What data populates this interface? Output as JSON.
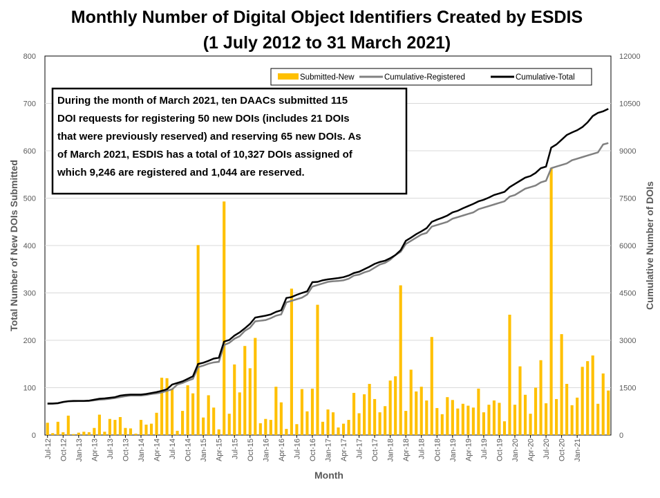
{
  "chart_data": {
    "type": "bar",
    "title": "Monthly Number of Digital Object Identifiers Created by ESDIS",
    "subtitle": "(1 July 2012 to 31 March 2021)",
    "xlabel": "Month",
    "ylabel": "Total Number of New DOIs Submitted",
    "y2label": "Cumulative Number of DOIs",
    "ylim": [
      0,
      800
    ],
    "y2lim": [
      0,
      12000
    ],
    "yticks": [
      "0",
      "100",
      "200",
      "300",
      "400",
      "500",
      "600",
      "700",
      "800"
    ],
    "y2ticks": [
      "0",
      "1500",
      "3000",
      "4500",
      "6000",
      "7500",
      "9000",
      "10500",
      "12000"
    ],
    "xtick_labels": [
      "Jul-12",
      "Oct-12",
      "Jan-13",
      "Apr-13",
      "Jul-13",
      "Oct-13",
      "Jan-14",
      "Apr-14",
      "Jul-14",
      "Oct-14",
      "Jan-15",
      "Apr-15",
      "Jul-15",
      "Oct-15",
      "Jan-16",
      "Apr-16",
      "Jul-16",
      "Oct-16",
      "Jan-17",
      "Apr-17",
      "Jul-17",
      "Oct-17",
      "Jan-18",
      "Apr-18",
      "Jul-18",
      "Oct-18",
      "Jan-19",
      "Apr-19",
      "Jul-19",
      "Oct-19",
      "Jan-20",
      "Apr-20",
      "Jul-20",
      "Oct-20",
      "Jan-21"
    ],
    "grid": "horizontal",
    "legend_position": "top-right",
    "series": [
      {
        "name": "Submitted-New",
        "kind": "bar",
        "axis": "left",
        "color": "#FFC000",
        "values": [
          26,
          4,
          28,
          6,
          41,
          2,
          5,
          7,
          6,
          15,
          43,
          7,
          34,
          32,
          38,
          15,
          14,
          3,
          32,
          22,
          24,
          47,
          121,
          120,
          98,
          9,
          51,
          105,
          88,
          401,
          37,
          84,
          58,
          12,
          493,
          45,
          149,
          90,
          188,
          141,
          205,
          25,
          34,
          32,
          102,
          69,
          13,
          309,
          23,
          97,
          50,
          98,
          275,
          28,
          54,
          48,
          16,
          24,
          32,
          89,
          46,
          86,
          108,
          76,
          48,
          61,
          115,
          124,
          316,
          51,
          138,
          92,
          102,
          73,
          207,
          57,
          44,
          80,
          74,
          56,
          66,
          62,
          58,
          98,
          48,
          64,
          73,
          68,
          29,
          254,
          64,
          145,
          85,
          45,
          100,
          158,
          67,
          564,
          76,
          213,
          108,
          63,
          79,
          144,
          156,
          168,
          66,
          130,
          94
        ]
      },
      {
        "name": "Cumulative-Registered",
        "kind": "line",
        "axis": "right",
        "color": "#808080",
        "values": [
          985,
          990,
          1005,
          1040,
          1070,
          1070,
          1075,
          1075,
          1080,
          1100,
          1120,
          1130,
          1150,
          1170,
          1200,
          1230,
          1250,
          1250,
          1250,
          1270,
          1300,
          1320,
          1350,
          1400,
          1450,
          1600,
          1650,
          1720,
          1780,
          2150,
          2200,
          2260,
          2300,
          2320,
          2850,
          2920,
          3050,
          3130,
          3300,
          3400,
          3600,
          3620,
          3640,
          3700,
          3780,
          3820,
          4200,
          4250,
          4300,
          4350,
          4450,
          4700,
          4750,
          4800,
          4850,
          4870,
          4880,
          4900,
          4950,
          5050,
          5080,
          5150,
          5200,
          5300,
          5400,
          5450,
          5550,
          5700,
          5800,
          6050,
          6150,
          6250,
          6350,
          6400,
          6600,
          6650,
          6700,
          6750,
          6850,
          6900,
          6950,
          7000,
          7050,
          7150,
          7200,
          7250,
          7300,
          7350,
          7400,
          7550,
          7600,
          7700,
          7800,
          7850,
          7900,
          8000,
          8050,
          8450,
          8500,
          8550,
          8600,
          8700,
          8750,
          8800,
          8850,
          8900,
          8950,
          9200,
          9246
        ]
      },
      {
        "name": "Cumulative-Total",
        "kind": "line",
        "axis": "right",
        "color": "#000000",
        "values": [
          1000,
          1000,
          1010,
          1050,
          1070,
          1080,
          1080,
          1080,
          1090,
          1120,
          1150,
          1160,
          1180,
          1200,
          1250,
          1270,
          1280,
          1280,
          1280,
          1300,
          1330,
          1360,
          1400,
          1450,
          1600,
          1650,
          1700,
          1780,
          1860,
          2250,
          2290,
          2350,
          2420,
          2450,
          2960,
          3010,
          3150,
          3250,
          3380,
          3520,
          3720,
          3750,
          3780,
          3820,
          3900,
          3950,
          4340,
          4370,
          4440,
          4500,
          4550,
          4840,
          4850,
          4900,
          4930,
          4950,
          4970,
          5000,
          5050,
          5130,
          5170,
          5250,
          5330,
          5420,
          5480,
          5520,
          5600,
          5700,
          5850,
          6150,
          6250,
          6360,
          6450,
          6550,
          6750,
          6820,
          6880,
          6950,
          7050,
          7100,
          7180,
          7250,
          7320,
          7400,
          7450,
          7520,
          7600,
          7650,
          7700,
          7850,
          7950,
          8050,
          8150,
          8200,
          8300,
          8450,
          8500,
          9100,
          9200,
          9350,
          9500,
          9580,
          9650,
          9750,
          9900,
          10100,
          10200,
          10250,
          10327
        ]
      }
    ],
    "annotation": [
      "During the month of March 2021, ten DAACs submitted 115",
      "DOI requests for registering 50 new DOIs (includes 21 DOIs",
      "that were previously reserved) and reserving 65 new DOIs. As",
      "of March 2021, ESDIS has a total of 10,327 DOIs assigned of",
      "which 9,246 are registered and 1,044 are reserved."
    ]
  }
}
